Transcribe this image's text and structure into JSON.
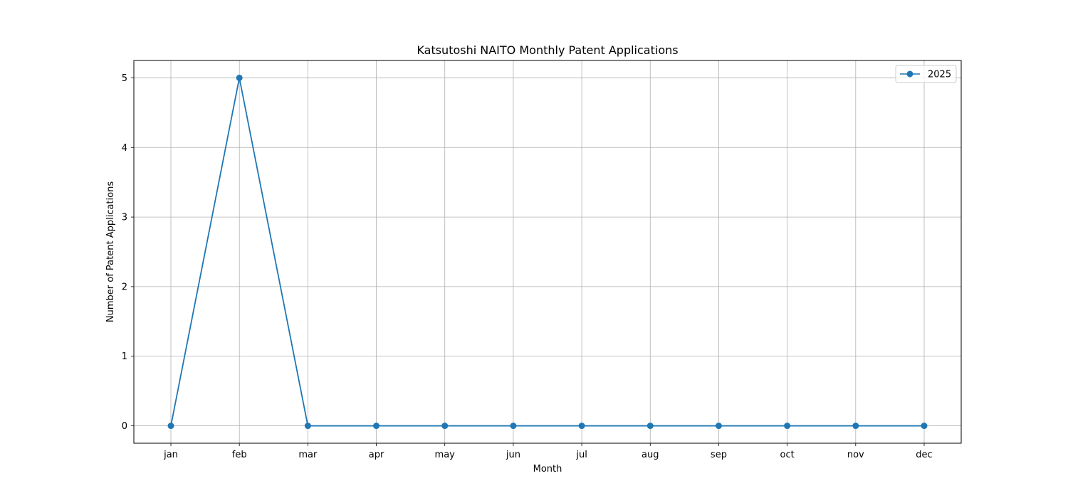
{
  "chart_data": {
    "type": "line",
    "title": "Katsutoshi NAITO Monthly Patent Applications",
    "xlabel": "Month",
    "ylabel": "Number of Patent Applications",
    "categories": [
      "jan",
      "feb",
      "mar",
      "apr",
      "may",
      "jun",
      "jul",
      "aug",
      "sep",
      "oct",
      "nov",
      "dec"
    ],
    "series": [
      {
        "name": "2025",
        "values": [
          0,
          5,
          0,
          0,
          0,
          0,
          0,
          0,
          0,
          0,
          0,
          0
        ],
        "color": "#1f77b4",
        "marker": "circle"
      }
    ],
    "ylim": [
      -0.25,
      5.25
    ],
    "yticks": [
      0,
      1,
      2,
      3,
      4,
      5
    ],
    "grid": true,
    "legend_position": "top-right"
  }
}
